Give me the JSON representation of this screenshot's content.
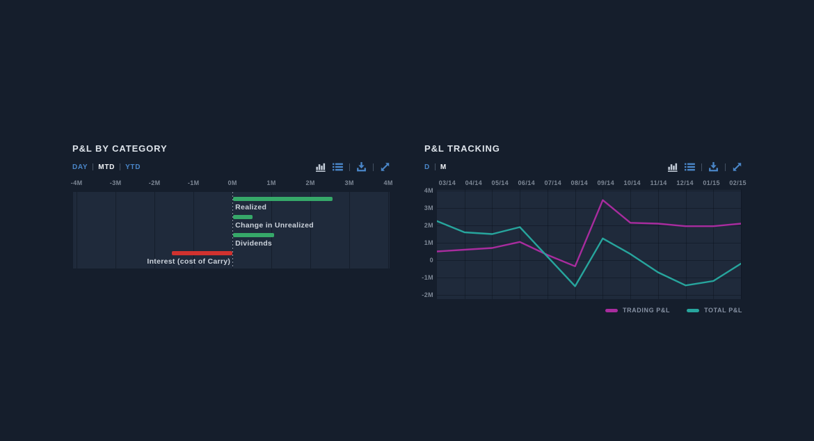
{
  "page": {
    "background": "#151e2c",
    "accent_blue": "#4a86c8"
  },
  "left_panel": {
    "title": "P&L BY CATEGORY",
    "range_options": [
      {
        "label": "DAY",
        "active": false
      },
      {
        "label": "MTD",
        "active": true
      },
      {
        "label": "YTD",
        "active": false
      }
    ],
    "toolbar_icons": [
      {
        "name": "bar-chart-icon",
        "active": true
      },
      {
        "name": "list-icon",
        "active": false
      },
      {
        "name": "download-icon",
        "active": false
      },
      {
        "name": "expand-icon",
        "active": false
      }
    ],
    "chart_data": {
      "type": "bar",
      "orientation": "horizontal",
      "title": "P&L BY CATEGORY",
      "categories": [
        "Realized",
        "Change in Unrealized",
        "Dividends",
        "Interest (cost of Carry)"
      ],
      "values": [
        2.55,
        0.5,
        1.05,
        -1.55
      ],
      "units": "M",
      "x_ticks": [
        {
          "label": "-4M",
          "value": -4
        },
        {
          "label": "-3M",
          "value": -3
        },
        {
          "label": "-2M",
          "value": -2
        },
        {
          "label": "-1M",
          "value": -1
        },
        {
          "label": "0M",
          "value": 0
        },
        {
          "label": "1M",
          "value": 1
        },
        {
          "label": "2M",
          "value": 2
        },
        {
          "label": "3M",
          "value": 3
        },
        {
          "label": "4M",
          "value": 4
        }
      ],
      "xlim": [
        -4.11,
        4.05
      ],
      "positive_color": "#36a869",
      "negative_color": "#d0322f",
      "grid": true
    }
  },
  "right_panel": {
    "title": "P&L TRACKING",
    "range_options": [
      {
        "label": "D",
        "active": false
      },
      {
        "label": "M",
        "active": true
      }
    ],
    "toolbar_icons": [
      {
        "name": "bar-chart-icon",
        "active": true
      },
      {
        "name": "list-icon",
        "active": false
      },
      {
        "name": "download-icon",
        "active": false
      },
      {
        "name": "expand-icon",
        "active": false
      }
    ],
    "chart_data": {
      "type": "line",
      "title": "P&L TRACKING",
      "x": [
        "03/14",
        "04/14",
        "05/14",
        "06/14",
        "07/14",
        "08/14",
        "09/14",
        "10/14",
        "11/14",
        "12/14",
        "01/15",
        "02/15"
      ],
      "series": [
        {
          "name": "TRADING P&L",
          "color": "#a82c9e",
          "values": [
            0.5,
            0.6,
            0.7,
            1.05,
            0.3,
            -0.35,
            3.45,
            2.15,
            2.1,
            1.95,
            1.95,
            2.1
          ]
        },
        {
          "name": "TOTAL P&L",
          "color": "#27a59d",
          "values": [
            2.25,
            1.6,
            1.5,
            1.9,
            0.2,
            -1.5,
            1.25,
            0.35,
            -0.7,
            -1.45,
            -1.2,
            -0.2
          ]
        }
      ],
      "y_ticks": [
        {
          "label": "4M",
          "value": 4
        },
        {
          "label": "3M",
          "value": 3
        },
        {
          "label": "2M",
          "value": 2
        },
        {
          "label": "1M",
          "value": 1
        },
        {
          "label": "0",
          "value": 0
        },
        {
          "label": "-1M",
          "value": -1
        },
        {
          "label": "-2M",
          "value": -2
        }
      ],
      "ylim": [
        -2.24,
        4.08
      ],
      "units": "M",
      "grid": true,
      "legend_position": "bottom-right"
    }
  }
}
